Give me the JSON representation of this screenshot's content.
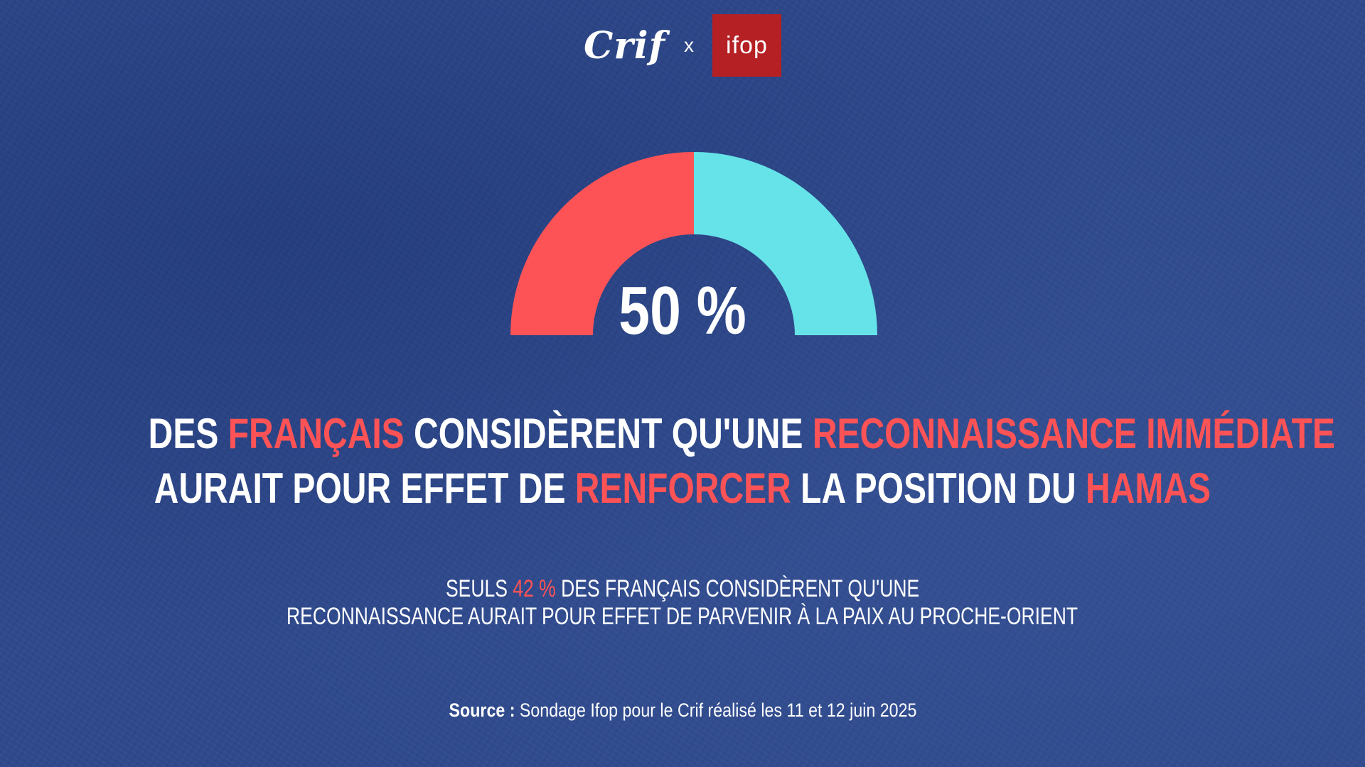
{
  "logos": {
    "crif": "Crif",
    "separator": "x",
    "ifop": "ifop"
  },
  "gauge": {
    "value_label": "50 %",
    "fraction": 0.5,
    "colors": {
      "left": "#fd5356",
      "right": "#66e3e8",
      "background": "#2f4a8c"
    }
  },
  "headline": {
    "line1": [
      "Des ",
      "Français",
      " considèrent qu'une ",
      "reconnaissance immédiate"
    ],
    "line2": [
      "aurait pour effet de ",
      "renforcer",
      " la position du ",
      "Hamas"
    ]
  },
  "subtitle": {
    "line1_prefix": "Seuls ",
    "line1_highlight": "42 %",
    "line1_suffix": " des Français considèrent qu'une",
    "line2": "reconnaissance aurait pour effet de parvenir à la paix au Proche-Orient"
  },
  "source": {
    "label": "Source :",
    "text": " Sondage Ifop pour le Crif réalisé les 11 et 12 juin 2025"
  },
  "accent_color": "#fd5356"
}
